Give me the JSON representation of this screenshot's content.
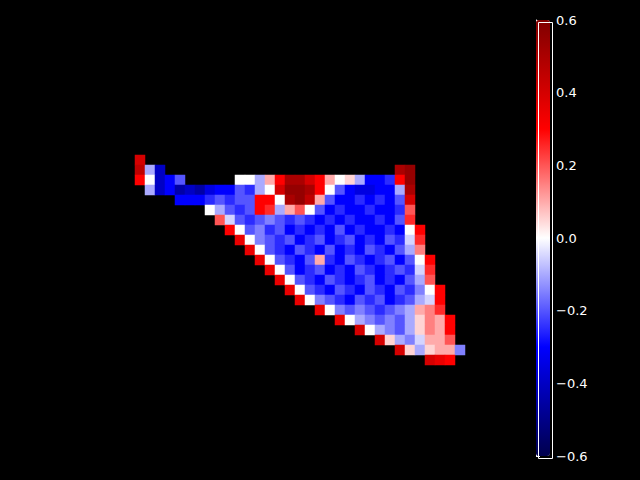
{
  "chart_data": {
    "type": "heatmap",
    "tick_labels": false,
    "z": [
      [
        0.4,
        null,
        null,
        null,
        null,
        null,
        null,
        null,
        null,
        null,
        null,
        null,
        null,
        null,
        null,
        null,
        null,
        null,
        null,
        null,
        null,
        null,
        null,
        null,
        null,
        null,
        null,
        null,
        null,
        null,
        null,
        null,
        null
      ],
      [
        0.45,
        -0.1,
        -0.4,
        null,
        null,
        null,
        null,
        null,
        null,
        null,
        null,
        null,
        null,
        null,
        null,
        null,
        null,
        null,
        null,
        null,
        null,
        null,
        null,
        null,
        null,
        null,
        0.5,
        0.55,
        null,
        null,
        null,
        null,
        null
      ],
      [
        0.3,
        0.0,
        -0.4,
        -0.3,
        -0.2,
        null,
        null,
        null,
        null,
        null,
        0.0,
        0.0,
        -0.1,
        0.1,
        0.3,
        0.5,
        0.5,
        0.4,
        0.3,
        0.1,
        0.0,
        0.05,
        -0.1,
        -0.3,
        -0.3,
        -0.25,
        0.3,
        0.55,
        null,
        null,
        null,
        null,
        null
      ],
      [
        null,
        -0.1,
        -0.4,
        -0.3,
        -0.45,
        -0.4,
        -0.45,
        -0.35,
        -0.3,
        -0.3,
        -0.2,
        -0.25,
        -0.1,
        0.0,
        0.4,
        0.55,
        0.55,
        0.5,
        0.3,
        0.0,
        -0.2,
        -0.3,
        -0.35,
        -0.35,
        -0.3,
        -0.3,
        -0.1,
        0.5,
        null,
        null,
        null,
        null,
        null
      ],
      [
        null,
        null,
        null,
        null,
        -0.3,
        -0.3,
        -0.3,
        -0.25,
        -0.2,
        -0.25,
        -0.2,
        -0.2,
        0.3,
        0.3,
        0.0,
        0.5,
        0.55,
        0.45,
        0.1,
        -0.2,
        -0.3,
        -0.3,
        -0.25,
        -0.3,
        -0.25,
        -0.3,
        -0.2,
        0.4,
        null,
        null,
        null,
        null,
        null
      ],
      [
        null,
        null,
        null,
        null,
        null,
        null,
        null,
        0.0,
        -0.1,
        -0.2,
        -0.25,
        -0.2,
        0.3,
        0.25,
        -0.1,
        0.1,
        0.2,
        0.0,
        -0.2,
        -0.3,
        -0.25,
        -0.3,
        -0.3,
        -0.25,
        -0.3,
        -0.3,
        -0.25,
        0.2,
        null,
        null,
        null,
        null,
        null
      ],
      [
        null,
        null,
        null,
        null,
        null,
        null,
        null,
        null,
        0.2,
        -0.05,
        -0.2,
        -0.25,
        -0.2,
        -0.15,
        -0.2,
        -0.25,
        -0.2,
        -0.25,
        -0.3,
        -0.25,
        -0.3,
        -0.25,
        -0.3,
        -0.3,
        -0.25,
        -0.3,
        -0.2,
        0.25,
        null,
        null,
        null,
        null,
        null
      ],
      [
        null,
        null,
        null,
        null,
        null,
        null,
        null,
        null,
        null,
        0.3,
        0.0,
        -0.2,
        -0.15,
        -0.25,
        -0.2,
        -0.3,
        -0.25,
        -0.3,
        -0.25,
        -0.3,
        -0.2,
        -0.3,
        -0.25,
        -0.3,
        -0.3,
        -0.25,
        -0.3,
        0.0,
        0.3,
        null,
        null,
        null,
        null
      ],
      [
        null,
        null,
        null,
        null,
        null,
        null,
        null,
        null,
        null,
        null,
        0.35,
        0.0,
        -0.15,
        -0.2,
        -0.25,
        -0.2,
        -0.3,
        -0.25,
        -0.2,
        -0.3,
        -0.25,
        -0.2,
        -0.3,
        -0.25,
        -0.3,
        -0.2,
        -0.25,
        -0.05,
        0.25,
        null,
        null,
        null,
        null
      ],
      [
        null,
        null,
        null,
        null,
        null,
        null,
        null,
        null,
        null,
        null,
        null,
        0.35,
        0.0,
        -0.2,
        -0.25,
        -0.3,
        -0.2,
        -0.25,
        -0.3,
        -0.2,
        -0.3,
        -0.25,
        -0.3,
        -0.2,
        -0.25,
        -0.3,
        -0.2,
        -0.1,
        0.15,
        null,
        null,
        null,
        null
      ],
      [
        null,
        null,
        null,
        null,
        null,
        null,
        null,
        null,
        null,
        null,
        null,
        null,
        0.35,
        0.0,
        -0.2,
        -0.25,
        -0.3,
        -0.2,
        0.1,
        -0.25,
        -0.3,
        -0.2,
        -0.25,
        -0.3,
        -0.25,
        -0.2,
        -0.3,
        -0.2,
        0.0,
        0.3,
        null,
        null,
        null
      ],
      [
        null,
        null,
        null,
        null,
        null,
        null,
        null,
        null,
        null,
        null,
        null,
        null,
        null,
        0.35,
        0.0,
        -0.2,
        -0.3,
        -0.25,
        -0.2,
        -0.3,
        -0.25,
        -0.3,
        -0.2,
        -0.25,
        -0.3,
        -0.25,
        -0.2,
        -0.25,
        -0.05,
        0.25,
        null,
        null,
        null
      ],
      [
        null,
        null,
        null,
        null,
        null,
        null,
        null,
        null,
        null,
        null,
        null,
        null,
        null,
        null,
        0.35,
        0.0,
        -0.2,
        -0.25,
        -0.3,
        -0.2,
        -0.25,
        -0.3,
        -0.25,
        -0.2,
        -0.3,
        -0.25,
        -0.3,
        -0.2,
        -0.1,
        0.2,
        null,
        null,
        null
      ],
      [
        null,
        null,
        null,
        null,
        null,
        null,
        null,
        null,
        null,
        null,
        null,
        null,
        null,
        null,
        null,
        0.35,
        0.0,
        -0.2,
        -0.25,
        -0.3,
        -0.2,
        -0.25,
        -0.3,
        -0.2,
        -0.25,
        -0.3,
        -0.2,
        -0.25,
        -0.15,
        0.0,
        0.3,
        null,
        null
      ],
      [
        null,
        null,
        null,
        null,
        null,
        null,
        null,
        null,
        null,
        null,
        null,
        null,
        null,
        null,
        null,
        null,
        0.35,
        0.0,
        -0.15,
        -0.2,
        -0.25,
        -0.3,
        -0.2,
        -0.25,
        -0.2,
        -0.3,
        -0.25,
        -0.2,
        -0.1,
        -0.05,
        0.3,
        null,
        null
      ],
      [
        null,
        null,
        null,
        null,
        null,
        null,
        null,
        null,
        null,
        null,
        null,
        null,
        null,
        null,
        null,
        null,
        null,
        null,
        0.35,
        0.0,
        -0.15,
        -0.2,
        -0.15,
        -0.2,
        -0.25,
        -0.2,
        -0.15,
        -0.1,
        0.1,
        0.15,
        0.25,
        null,
        null
      ],
      [
        null,
        null,
        null,
        null,
        null,
        null,
        null,
        null,
        null,
        null,
        null,
        null,
        null,
        null,
        null,
        null,
        null,
        null,
        null,
        null,
        0.35,
        0.0,
        -0.1,
        -0.15,
        -0.2,
        -0.15,
        -0.2,
        -0.1,
        0.05,
        0.15,
        0.1,
        0.3,
        null
      ],
      [
        null,
        null,
        null,
        null,
        null,
        null,
        null,
        null,
        null,
        null,
        null,
        null,
        null,
        null,
        null,
        null,
        null,
        null,
        null,
        null,
        null,
        null,
        0.4,
        0.0,
        -0.1,
        -0.15,
        -0.2,
        -0.1,
        0.05,
        0.15,
        0.1,
        0.3,
        null
      ],
      [
        null,
        null,
        null,
        null,
        null,
        null,
        null,
        null,
        null,
        null,
        null,
        null,
        null,
        null,
        null,
        null,
        null,
        null,
        null,
        null,
        null,
        null,
        null,
        null,
        0.4,
        0.05,
        -0.1,
        -0.15,
        -0.05,
        0.1,
        0.1,
        0.2,
        null
      ],
      [
        null,
        null,
        null,
        null,
        null,
        null,
        null,
        null,
        null,
        null,
        null,
        null,
        null,
        null,
        null,
        null,
        null,
        null,
        null,
        null,
        null,
        null,
        null,
        null,
        null,
        null,
        0.4,
        0.05,
        -0.1,
        0.05,
        0.1,
        0.1,
        -0.15
      ],
      [
        null,
        null,
        null,
        null,
        null,
        null,
        null,
        null,
        null,
        null,
        null,
        null,
        null,
        null,
        null,
        null,
        null,
        null,
        null,
        null,
        null,
        null,
        null,
        null,
        null,
        null,
        null,
        null,
        null,
        0.4,
        0.35,
        0.3,
        null
      ]
    ],
    "colorbar": {
      "range": [
        -0.6,
        0.6
      ],
      "ticks": [
        {
          "value": -0.6,
          "label": "−0.6"
        },
        {
          "value": -0.4,
          "label": "−0.4"
        },
        {
          "value": -0.2,
          "label": "−0.2"
        },
        {
          "value": 0,
          "label": "0.0"
        },
        0.2,
        0.4,
        0.6
      ]
    }
  }
}
